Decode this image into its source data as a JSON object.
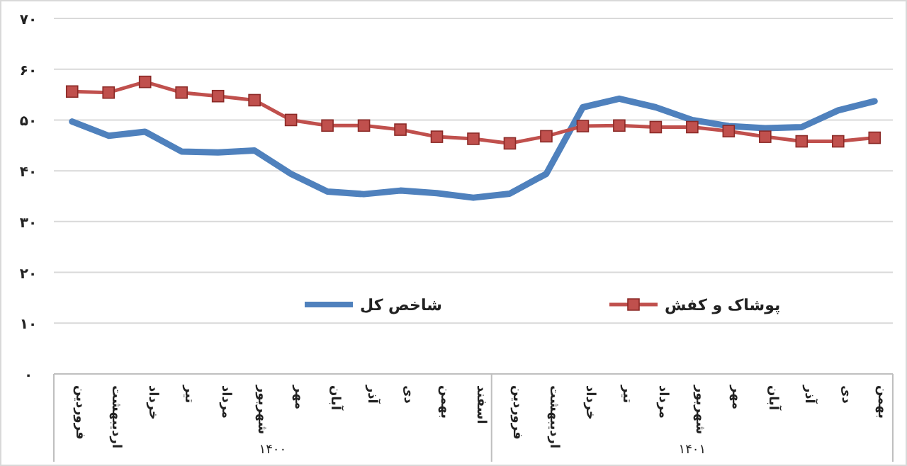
{
  "chart_data": {
    "type": "line",
    "categories": [
      "فروردین",
      "اردیبهشت",
      "خرداد",
      "تیر",
      "مرداد",
      "شهریور",
      "مهر",
      "آبان",
      "آذر",
      "دی",
      "بهمن",
      "اسفند",
      "فروردین",
      "اردیبهشت",
      "خرداد",
      "تیر",
      "مرداد",
      "شهریور",
      "مهر",
      "آبان",
      "آذر",
      "دی",
      "بهمن"
    ],
    "series": [
      {
        "name": "شاخص کل",
        "color": "#4f81bd",
        "marker": "none",
        "values": [
          49.7,
          46.9,
          47.7,
          43.8,
          43.6,
          44.0,
          39.4,
          35.9,
          35.4,
          36.1,
          35.6,
          34.7,
          35.5,
          39.4,
          52.5,
          54.2,
          52.5,
          50.0,
          48.8,
          48.4,
          48.6,
          51.9,
          53.7
        ]
      },
      {
        "name": "پوشاک و کفش",
        "color": "#c0504d",
        "marker": "square",
        "values": [
          55.6,
          55.4,
          57.5,
          55.4,
          54.7,
          53.9,
          50.0,
          48.9,
          48.9,
          48.1,
          46.7,
          46.3,
          45.4,
          46.8,
          48.8,
          48.9,
          48.6,
          48.6,
          47.8,
          46.7,
          45.8,
          45.8,
          46.5
        ]
      }
    ],
    "ylim": [
      0,
      70
    ],
    "yticks": [
      {
        "value": 0,
        "label": "۰"
      },
      {
        "value": 10,
        "label": "۱۰"
      },
      {
        "value": 20,
        "label": "۲۰"
      },
      {
        "value": 30,
        "label": "۳۰"
      },
      {
        "value": 40,
        "label": "۴۰"
      },
      {
        "value": 50,
        "label": "۵۰"
      },
      {
        "value": 60,
        "label": "۶۰"
      },
      {
        "value": 70,
        "label": "۷۰"
      }
    ],
    "grid": "y",
    "legend": "bottom",
    "line_style": "solid",
    "annotations": [
      "۱۴۰۰",
      "۱۴۰۱"
    ]
  }
}
